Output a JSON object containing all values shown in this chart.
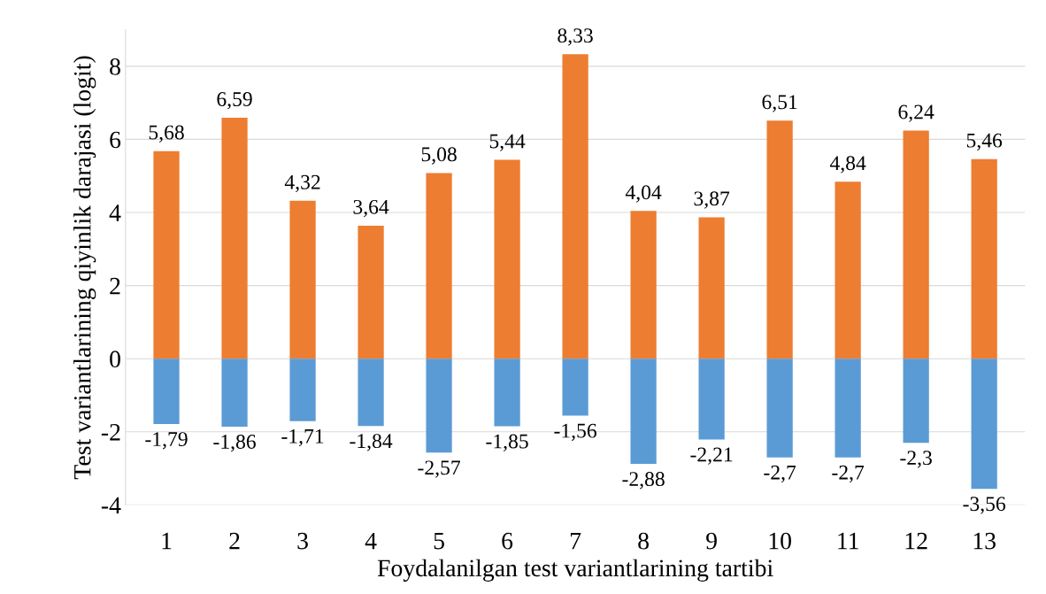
{
  "chart_data": {
    "type": "bar",
    "stacked": true,
    "xlabel": "Foydalanilgan test variantlarining tartibi",
    "ylabel": "Test variantlarining qiyinlik darajasi (logit)",
    "categories": [
      "1",
      "2",
      "3",
      "4",
      "5",
      "6",
      "7",
      "8",
      "9",
      "10",
      "11",
      "12",
      "13"
    ],
    "series": [
      {
        "color": "#ed7d31",
        "values": [
          5.68,
          6.59,
          4.32,
          3.64,
          5.08,
          5.44,
          8.33,
          4.04,
          3.87,
          6.51,
          4.84,
          6.24,
          5.46
        ],
        "value_labels": [
          "5,68",
          "6,59",
          "4,32",
          "3,64",
          "5,08",
          "5,44",
          "8,33",
          "4,04",
          "3,87",
          "6,51",
          "4,84",
          "6,24",
          "5,46"
        ]
      },
      {
        "color": "#5b9bd5",
        "values": [
          -1.79,
          -1.86,
          -1.71,
          -1.84,
          -2.57,
          -1.85,
          -1.56,
          -2.88,
          -2.21,
          -2.7,
          -2.7,
          -2.3,
          -3.56
        ],
        "value_labels": [
          "-1,79",
          "-1,86",
          "-1,71",
          "-1,84",
          "-2,57",
          "-1,85",
          "-1,56",
          "-2,88",
          "-2,21",
          "-2,7",
          "-2,7",
          "-2,3",
          "-3,56"
        ]
      }
    ],
    "ylim": [
      -4,
      9
    ],
    "yticks": [
      -4,
      -2,
      0,
      2,
      4,
      6,
      8
    ],
    "grid": "y"
  }
}
